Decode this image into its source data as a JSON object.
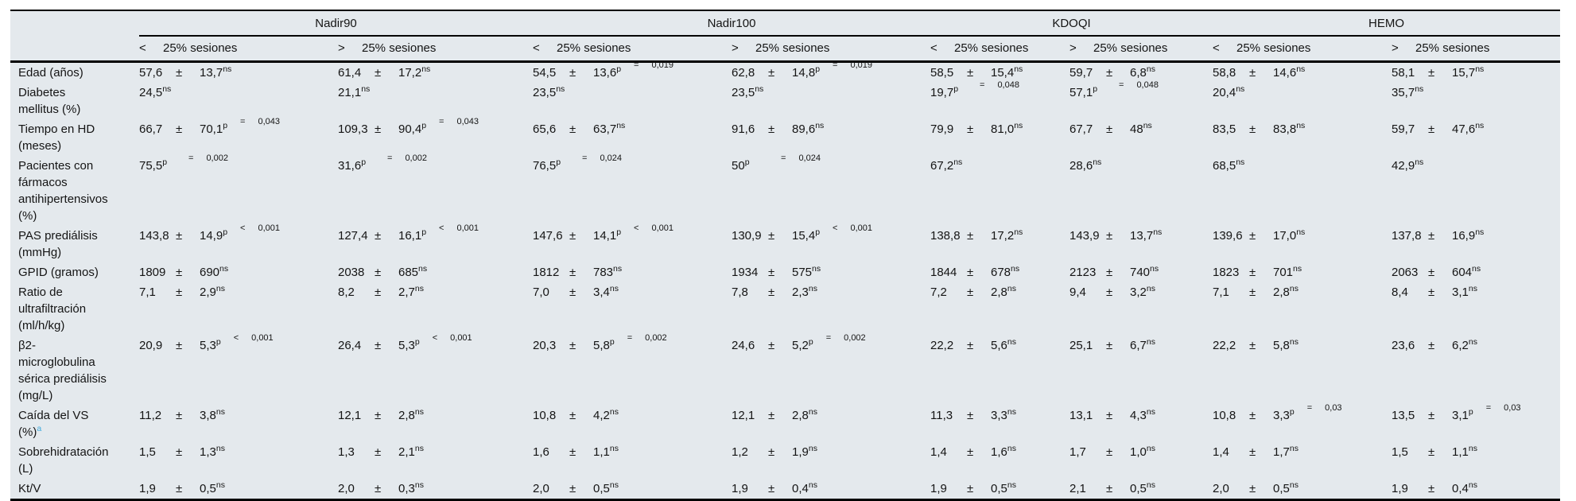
{
  "table": {
    "colors": {
      "background": "#e4e9ed",
      "note_marker": "#3fa9dc",
      "rule": "#000000"
    },
    "groups": [
      {
        "label": "Nadir90"
      },
      {
        "label": "Nadir100"
      },
      {
        "label": "KDOQI"
      },
      {
        "label": "HEMO"
      }
    ],
    "sub_columns": [
      {
        "sign": "<",
        "text": "25% sesiones"
      },
      {
        "sign": ">",
        "text": "25% sesiones"
      },
      {
        "sign": "<",
        "text": "25% sesiones"
      },
      {
        "sign": ">",
        "text": "25% sesiones"
      },
      {
        "sign": "<",
        "text": "25% sesiones"
      },
      {
        "sign": ">",
        "text": "25% sesiones"
      },
      {
        "sign": "<",
        "text": "25% sesiones"
      },
      {
        "sign": ">",
        "text": "25% sesiones"
      }
    ],
    "plus_minus": "±",
    "rows": [
      {
        "label": "Edad (años)",
        "cells": [
          {
            "v": "57,6",
            "sd": "13,7",
            "s": "ns"
          },
          {
            "v": "61,4",
            "sd": "17,2",
            "s": "ns"
          },
          {
            "v": "54,5",
            "sd": "13,6",
            "s": "p",
            "r": "=",
            "p": "0,019"
          },
          {
            "v": "62,8",
            "sd": "14,8",
            "s": "p",
            "r": "=",
            "p": "0,019"
          },
          {
            "v": "58,5",
            "sd": "15,4",
            "s": "ns"
          },
          {
            "v": "59,7",
            "sd": "6,8",
            "s": "ns"
          },
          {
            "v": "58,8",
            "sd": "14,6",
            "s": "ns"
          },
          {
            "v": "58,1",
            "sd": "15,7",
            "s": "ns"
          }
        ]
      },
      {
        "label": "Diabetes\nmellitus (%)",
        "cells": [
          {
            "v": "24,5",
            "s": "ns"
          },
          {
            "v": "21,1",
            "s": "ns"
          },
          {
            "v": "23,5",
            "s": "ns"
          },
          {
            "v": "23,5",
            "s": "ns"
          },
          {
            "v": "19,7",
            "s": "p",
            "r": "=",
            "p": "0,048"
          },
          {
            "v": "57,1",
            "s": "p",
            "r": "=",
            "p": "0,048"
          },
          {
            "v": "20,4",
            "s": "ns"
          },
          {
            "v": "35,7",
            "s": "ns"
          }
        ]
      },
      {
        "label": "Tiempo en HD\n(meses)",
        "cells": [
          {
            "v": "66,7",
            "sd": "70,1",
            "s": "p",
            "r": "=",
            "p": "0,043"
          },
          {
            "v": "109,3",
            "sd": "90,4",
            "s": "p",
            "r": "=",
            "p": "0,043"
          },
          {
            "v": "65,6",
            "sd": "63,7",
            "s": "ns"
          },
          {
            "v": "91,6",
            "sd": "89,6",
            "s": "ns"
          },
          {
            "v": "79,9",
            "sd": "81,0",
            "s": "ns"
          },
          {
            "v": "67,7",
            "sd": "48",
            "s": "ns"
          },
          {
            "v": "83,5",
            "sd": "83,8",
            "s": "ns"
          },
          {
            "v": "59,7",
            "sd": "47,6",
            "s": "ns"
          }
        ]
      },
      {
        "label": "Pacientes con\nfármacos\nantihipertensivos\n(%)",
        "cells": [
          {
            "v": "75,5",
            "s": "p",
            "r": "=",
            "p": "0,002"
          },
          {
            "v": "31,6",
            "s": "p",
            "r": "=",
            "p": "0,002"
          },
          {
            "v": "76,5",
            "s": "p",
            "r": "=",
            "p": "0,024"
          },
          {
            "v": "50",
            "s": "p",
            "r": "=",
            "p": "0,024"
          },
          {
            "v": "67,2",
            "s": "ns"
          },
          {
            "v": "28,6",
            "s": "ns"
          },
          {
            "v": "68,5",
            "s": "ns"
          },
          {
            "v": "42,9",
            "s": "ns"
          }
        ]
      },
      {
        "label": "PAS prediálisis\n(mmHg)",
        "cells": [
          {
            "v": "143,8",
            "sd": "14,9",
            "s": "p",
            "r": "<",
            "p": "0,001"
          },
          {
            "v": "127,4",
            "sd": "16,1",
            "s": "p",
            "r": "<",
            "p": "0,001"
          },
          {
            "v": "147,6",
            "sd": "14,1",
            "s": "p",
            "r": "<",
            "p": "0,001"
          },
          {
            "v": "130,9",
            "sd": "15,4",
            "s": "p",
            "r": "<",
            "p": "0,001"
          },
          {
            "v": "138,8",
            "sd": "17,2",
            "s": "ns"
          },
          {
            "v": "143,9",
            "sd": "13,7",
            "s": "ns"
          },
          {
            "v": "139,6",
            "sd": "17,0",
            "s": "ns"
          },
          {
            "v": "137,8",
            "sd": "16,9",
            "s": "ns"
          }
        ]
      },
      {
        "label": "GPID (gramos)",
        "cells": [
          {
            "v": "1809",
            "sd": "690",
            "s": "ns"
          },
          {
            "v": "2038",
            "sd": "685",
            "s": "ns"
          },
          {
            "v": "1812",
            "sd": "783",
            "s": "ns"
          },
          {
            "v": "1934",
            "sd": "575",
            "s": "ns"
          },
          {
            "v": "1844",
            "sd": "678",
            "s": "ns"
          },
          {
            "v": "2123",
            "sd": "740",
            "s": "ns"
          },
          {
            "v": "1823",
            "sd": "701",
            "s": "ns"
          },
          {
            "v": "2063",
            "sd": "604",
            "s": "ns"
          }
        ]
      },
      {
        "label": "Ratio de\nultrafiltración\n(ml/h/kg)",
        "cells": [
          {
            "v": "7,1",
            "sd": "2,9",
            "s": "ns"
          },
          {
            "v": "8,2",
            "sd": "2,7",
            "s": "ns"
          },
          {
            "v": "7,0",
            "sd": "3,4",
            "s": "ns"
          },
          {
            "v": "7,8",
            "sd": "2,3",
            "s": "ns"
          },
          {
            "v": "7,2",
            "sd": "2,8",
            "s": "ns"
          },
          {
            "v": "9,4",
            "sd": "3,2",
            "s": "ns"
          },
          {
            "v": "7,1",
            "sd": "2,8",
            "s": "ns"
          },
          {
            "v": "8,4",
            "sd": "3,1",
            "s": "ns"
          }
        ]
      },
      {
        "label": "β2-\nmicroglobulina\nsérica prediálisis\n(mg/L)",
        "cells": [
          {
            "v": "20,9",
            "sd": "5,3",
            "s": "p",
            "r": "<",
            "p": "0,001"
          },
          {
            "v": "26,4",
            "sd": "5,3",
            "s": "p",
            "r": "<",
            "p": "0,001"
          },
          {
            "v": "20,3",
            "sd": "5,8",
            "s": "p",
            "r": "=",
            "p": "0,002"
          },
          {
            "v": "24,6",
            "sd": "5,2",
            "s": "p",
            "r": "=",
            "p": "0,002"
          },
          {
            "v": "22,2",
            "sd": "5,6",
            "s": "ns"
          },
          {
            "v": "25,1",
            "sd": "6,7",
            "s": "ns"
          },
          {
            "v": "22,2",
            "sd": "5,8",
            "s": "ns"
          },
          {
            "v": "23,6",
            "sd": "6,2",
            "s": "ns"
          }
        ]
      },
      {
        "label": "Caída del VS\n(%)",
        "note": "a",
        "cells": [
          {
            "v": "11,2",
            "sd": "3,8",
            "s": "ns"
          },
          {
            "v": "12,1",
            "sd": "2,8",
            "s": "ns"
          },
          {
            "v": "10,8",
            "sd": "4,2",
            "s": "ns"
          },
          {
            "v": "12,1",
            "sd": "2,8",
            "s": "ns"
          },
          {
            "v": "11,3",
            "sd": "3,3",
            "s": "ns"
          },
          {
            "v": "13,1",
            "sd": "4,3",
            "s": "ns"
          },
          {
            "v": "10,8",
            "sd": "3,3",
            "s": "p",
            "r": "=",
            "p": "0,03"
          },
          {
            "v": "13,5",
            "sd": "3,1",
            "s": "p",
            "r": "=",
            "p": "0,03"
          }
        ]
      },
      {
        "label": "Sobrehidratación\n(L)",
        "cells": [
          {
            "v": "1,5",
            "sd": "1,3",
            "s": "ns"
          },
          {
            "v": "1,3",
            "sd": "2,1",
            "s": "ns"
          },
          {
            "v": "1,6",
            "sd": "1,1",
            "s": "ns"
          },
          {
            "v": "1,2",
            "sd": "1,9",
            "s": "ns"
          },
          {
            "v": "1,4",
            "sd": "1,6",
            "s": "ns"
          },
          {
            "v": "1,7",
            "sd": "1,0",
            "s": "ns"
          },
          {
            "v": "1,4",
            "sd": "1,7",
            "s": "ns"
          },
          {
            "v": "1,5",
            "sd": "1,1",
            "s": "ns"
          }
        ]
      },
      {
        "label": "Kt/V",
        "cells": [
          {
            "v": "1,9",
            "sd": "0,5",
            "s": "ns"
          },
          {
            "v": "2,0",
            "sd": "0,3",
            "s": "ns"
          },
          {
            "v": "2,0",
            "sd": "0,5",
            "s": "ns"
          },
          {
            "v": "1,9",
            "sd": "0,4",
            "s": "ns"
          },
          {
            "v": "1,9",
            "sd": "0,5",
            "s": "ns"
          },
          {
            "v": "2,1",
            "sd": "0,5",
            "s": "ns"
          },
          {
            "v": "2,0",
            "sd": "0,5",
            "s": "ns"
          },
          {
            "v": "1,9",
            "sd": "0,4",
            "s": "ns"
          }
        ]
      }
    ]
  }
}
